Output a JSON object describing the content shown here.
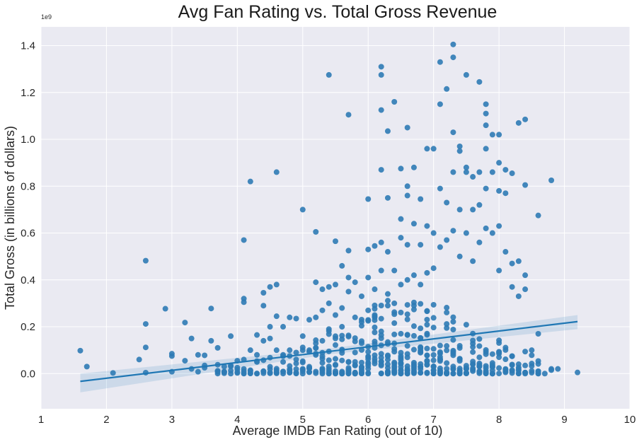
{
  "chart_data": {
    "type": "scatter",
    "title": "Avg Fan Rating vs. Total Gross Revenue",
    "xlabel": "Average IMDB Fan Rating (out of 10)",
    "ylabel": "Total Gross (in billions of dollars)",
    "y_offset_label": "1e9",
    "xlim": [
      1,
      10
    ],
    "ylim": [
      -0.15,
      1.48
    ],
    "x_ticks": [
      1,
      2,
      3,
      4,
      5,
      6,
      7,
      8,
      9,
      10
    ],
    "y_ticks": [
      0.0,
      0.2,
      0.4,
      0.6,
      0.8,
      1.0,
      1.2,
      1.4
    ],
    "x_tick_labels": [
      "1",
      "2",
      "3",
      "4",
      "5",
      "6",
      "7",
      "8",
      "9",
      "10"
    ],
    "y_tick_labels": [
      "0.0",
      "0.2",
      "0.4",
      "0.6",
      "0.8",
      "1.0",
      "1.2",
      "1.4"
    ],
    "grid": true,
    "point_color": "#2f7bb5",
    "background_color": "#eaeaf2",
    "regression_line": {
      "x": [
        1.6,
        9.2
      ],
      "y": [
        -0.033,
        0.222
      ],
      "ci_upper_start": 0.0,
      "ci_lower_start": -0.08,
      "ci_upper_end": 0.25,
      "ci_lower_end": 0.19
    },
    "points": [
      [
        1.6,
        0.098
      ],
      [
        1.7,
        0.03
      ],
      [
        2.1,
        0.003
      ],
      [
        2.5,
        0.06
      ],
      [
        2.6,
        0.482
      ],
      [
        2.6,
        0.212
      ],
      [
        2.6,
        0.112
      ],
      [
        2.6,
        0.004
      ],
      [
        2.9,
        0.277
      ],
      [
        3.0,
        0.085
      ],
      [
        3.0,
        0.075
      ],
      [
        3.0,
        0.008
      ],
      [
        3.2,
        0.218
      ],
      [
        3.2,
        0.055
      ],
      [
        3.3,
        0.15
      ],
      [
        3.3,
        0.02
      ],
      [
        3.4,
        0.08
      ],
      [
        3.4,
        0.008
      ],
      [
        3.5,
        0.078
      ],
      [
        3.5,
        0.035
      ],
      [
        3.5,
        0.025
      ],
      [
        3.6,
        0.278
      ],
      [
        3.6,
        0.14
      ],
      [
        3.7,
        0.11
      ],
      [
        3.7,
        0.038
      ],
      [
        3.7,
        0.012
      ],
      [
        3.8,
        0.03
      ],
      [
        3.8,
        0.008
      ],
      [
        3.9,
        0.16
      ],
      [
        3.9,
        0.035
      ],
      [
        4.0,
        0.055
      ],
      [
        4.1,
        0.57
      ],
      [
        4.1,
        0.32
      ],
      [
        4.1,
        0.305
      ],
      [
        4.1,
        0.06
      ],
      [
        4.2,
        0.82
      ],
      [
        4.2,
        0.1
      ],
      [
        4.3,
        0.165
      ],
      [
        4.3,
        0.08
      ],
      [
        4.4,
        0.345
      ],
      [
        4.4,
        0.29
      ],
      [
        4.4,
        0.14
      ],
      [
        4.5,
        0.37
      ],
      [
        4.5,
        0.2
      ],
      [
        4.5,
        0.15
      ],
      [
        4.6,
        0.86
      ],
      [
        4.6,
        0.38
      ],
      [
        4.6,
        0.245
      ],
      [
        4.6,
        0.1
      ],
      [
        4.7,
        0.2
      ],
      [
        4.7,
        0.08
      ],
      [
        4.8,
        0.24
      ],
      [
        4.8,
        0.1
      ],
      [
        4.9,
        0.235
      ],
      [
        4.9,
        0.09
      ],
      [
        5.0,
        0.7
      ],
      [
        5.0,
        0.16
      ],
      [
        5.0,
        0.1
      ],
      [
        5.1,
        0.23
      ],
      [
        5.1,
        0.1
      ],
      [
        5.2,
        0.605
      ],
      [
        5.2,
        0.39
      ],
      [
        5.2,
        0.24
      ],
      [
        5.3,
        0.36
      ],
      [
        5.3,
        0.27
      ],
      [
        5.3,
        0.14
      ],
      [
        5.4,
        1.275
      ],
      [
        5.4,
        0.37
      ],
      [
        5.4,
        0.3
      ],
      [
        5.4,
        0.19
      ],
      [
        5.5,
        0.565
      ],
      [
        5.5,
        0.38
      ],
      [
        5.5,
        0.25
      ],
      [
        5.6,
        0.46
      ],
      [
        5.6,
        0.28
      ],
      [
        5.6,
        0.2
      ],
      [
        5.7,
        1.105
      ],
      [
        5.7,
        0.525
      ],
      [
        5.7,
        0.41
      ],
      [
        5.7,
        0.35
      ],
      [
        5.8,
        0.39
      ],
      [
        5.8,
        0.24
      ],
      [
        5.9,
        0.33
      ],
      [
        5.9,
        0.22
      ],
      [
        6.0,
        0.745
      ],
      [
        6.0,
        0.53
      ],
      [
        6.0,
        0.41
      ],
      [
        6.0,
        0.27
      ],
      [
        6.1,
        0.545
      ],
      [
        6.1,
        0.36
      ],
      [
        6.1,
        0.25
      ],
      [
        6.2,
        1.31
      ],
      [
        6.2,
        1.275
      ],
      [
        6.2,
        1.125
      ],
      [
        6.2,
        0.87
      ],
      [
        6.2,
        0.56
      ],
      [
        6.2,
        0.44
      ],
      [
        6.3,
        1.035
      ],
      [
        6.3,
        0.75
      ],
      [
        6.3,
        0.52
      ],
      [
        6.3,
        0.34
      ],
      [
        6.4,
        1.16
      ],
      [
        6.4,
        0.44
      ],
      [
        6.4,
        0.3
      ],
      [
        6.5,
        0.875
      ],
      [
        6.5,
        0.66
      ],
      [
        6.5,
        0.58
      ],
      [
        6.5,
        0.38
      ],
      [
        6.6,
        1.05
      ],
      [
        6.6,
        0.8
      ],
      [
        6.6,
        0.76
      ],
      [
        6.6,
        0.55
      ],
      [
        6.6,
        0.4
      ],
      [
        6.7,
        0.88
      ],
      [
        6.7,
        0.64
      ],
      [
        6.7,
        0.42
      ],
      [
        6.8,
        0.745
      ],
      [
        6.8,
        0.55
      ],
      [
        6.8,
        0.38
      ],
      [
        6.9,
        0.96
      ],
      [
        6.9,
        0.63
      ],
      [
        6.9,
        0.43
      ],
      [
        7.0,
        0.96
      ],
      [
        7.0,
        0.6
      ],
      [
        7.0,
        0.45
      ],
      [
        7.1,
        1.33
      ],
      [
        7.1,
        1.15
      ],
      [
        7.1,
        0.79
      ],
      [
        7.1,
        0.54
      ],
      [
        7.2,
        1.215
      ],
      [
        7.2,
        0.73
      ],
      [
        7.2,
        0.57
      ],
      [
        7.3,
        1.405
      ],
      [
        7.3,
        1.35
      ],
      [
        7.3,
        1.03
      ],
      [
        7.3,
        0.86
      ],
      [
        7.3,
        0.61
      ],
      [
        7.4,
        0.97
      ],
      [
        7.4,
        0.95
      ],
      [
        7.4,
        0.7
      ],
      [
        7.4,
        0.5
      ],
      [
        7.5,
        1.275
      ],
      [
        7.5,
        0.88
      ],
      [
        7.5,
        0.86
      ],
      [
        7.5,
        0.6
      ],
      [
        7.6,
        0.84
      ],
      [
        7.6,
        0.7
      ],
      [
        7.6,
        0.48
      ],
      [
        7.7,
        1.245
      ],
      [
        7.7,
        0.86
      ],
      [
        7.7,
        0.72
      ],
      [
        7.7,
        0.56
      ],
      [
        7.8,
        1.15
      ],
      [
        7.8,
        1.11
      ],
      [
        7.8,
        1.06
      ],
      [
        7.8,
        0.96
      ],
      [
        7.8,
        0.79
      ],
      [
        7.8,
        0.62
      ],
      [
        7.9,
        1.02
      ],
      [
        7.9,
        0.86
      ],
      [
        7.9,
        0.6
      ],
      [
        8.0,
        1.02
      ],
      [
        8.0,
        0.9
      ],
      [
        8.0,
        0.78
      ],
      [
        8.0,
        0.63
      ],
      [
        8.0,
        0.44
      ],
      [
        8.1,
        0.87
      ],
      [
        8.1,
        0.77
      ],
      [
        8.1,
        0.52
      ],
      [
        8.2,
        0.855
      ],
      [
        8.2,
        0.47
      ],
      [
        8.2,
        0.37
      ],
      [
        8.3,
        1.07
      ],
      [
        8.3,
        0.48
      ],
      [
        8.3,
        0.33
      ],
      [
        8.4,
        1.085
      ],
      [
        8.4,
        0.805
      ],
      [
        8.4,
        0.42
      ],
      [
        8.4,
        0.36
      ],
      [
        8.5,
        0.1
      ],
      [
        8.6,
        0.675
      ],
      [
        8.6,
        0.17
      ],
      [
        8.6,
        0.01
      ],
      [
        8.7,
        0.0
      ],
      [
        8.8,
        0.825
      ],
      [
        8.8,
        0.02
      ],
      [
        9.2,
        0.005
      ],
      [
        8.6,
        0.01
      ],
      [
        8.8,
        0.015
      ],
      [
        8.9,
        0.02
      ]
    ]
  }
}
